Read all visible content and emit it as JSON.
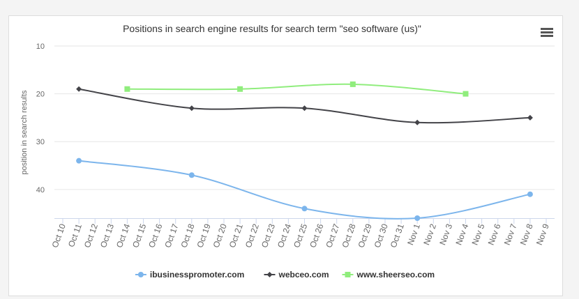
{
  "chart_data": {
    "type": "line",
    "title": "Positions in search engine results for search term \"seo software (us)\"",
    "y_label": "position in search results",
    "categories": [
      "Oct 10",
      "Oct 11",
      "Oct 12",
      "Oct 13",
      "Oct 14",
      "Oct 15",
      "Oct 16",
      "Oct 17",
      "Oct 18",
      "Oct 19",
      "Oct 20",
      "Oct 21",
      "Oct 22",
      "Oct 23",
      "Oct 24",
      "Oct 25",
      "Oct 26",
      "Oct 27",
      "Oct 28",
      "Oct 29",
      "Oct 30",
      "Oct 31",
      "Nov 1",
      "Nov 2",
      "Nov 3",
      "Nov 4",
      "Nov 5",
      "Nov 6",
      "Nov 7",
      "Nov 8",
      "Nov 9"
    ],
    "ylim": [
      10,
      46
    ],
    "yticks": [
      10,
      20,
      30,
      40
    ],
    "y_reversed": true,
    "grid": true,
    "series": [
      {
        "name": "ibusinesspromoter.com",
        "color": "#7cb5ec",
        "marker": "circle",
        "x": [
          "Oct 11",
          "Oct 18",
          "Oct 25",
          "Nov 1",
          "Nov 8"
        ],
        "values": [
          34,
          37,
          44,
          46,
          41
        ]
      },
      {
        "name": "webceo.com",
        "color": "#434348",
        "marker": "diamond",
        "x": [
          "Oct 11",
          "Oct 18",
          "Oct 25",
          "Nov 1",
          "Nov 8"
        ],
        "values": [
          19,
          23,
          23,
          26,
          25
        ]
      },
      {
        "name": "www.sheerseo.com",
        "color": "#90ed7d",
        "marker": "square",
        "x": [
          "Oct 14",
          "Oct 21",
          "Oct 28",
          "Nov 4"
        ],
        "values": [
          19,
          19,
          18,
          20
        ]
      }
    ]
  }
}
